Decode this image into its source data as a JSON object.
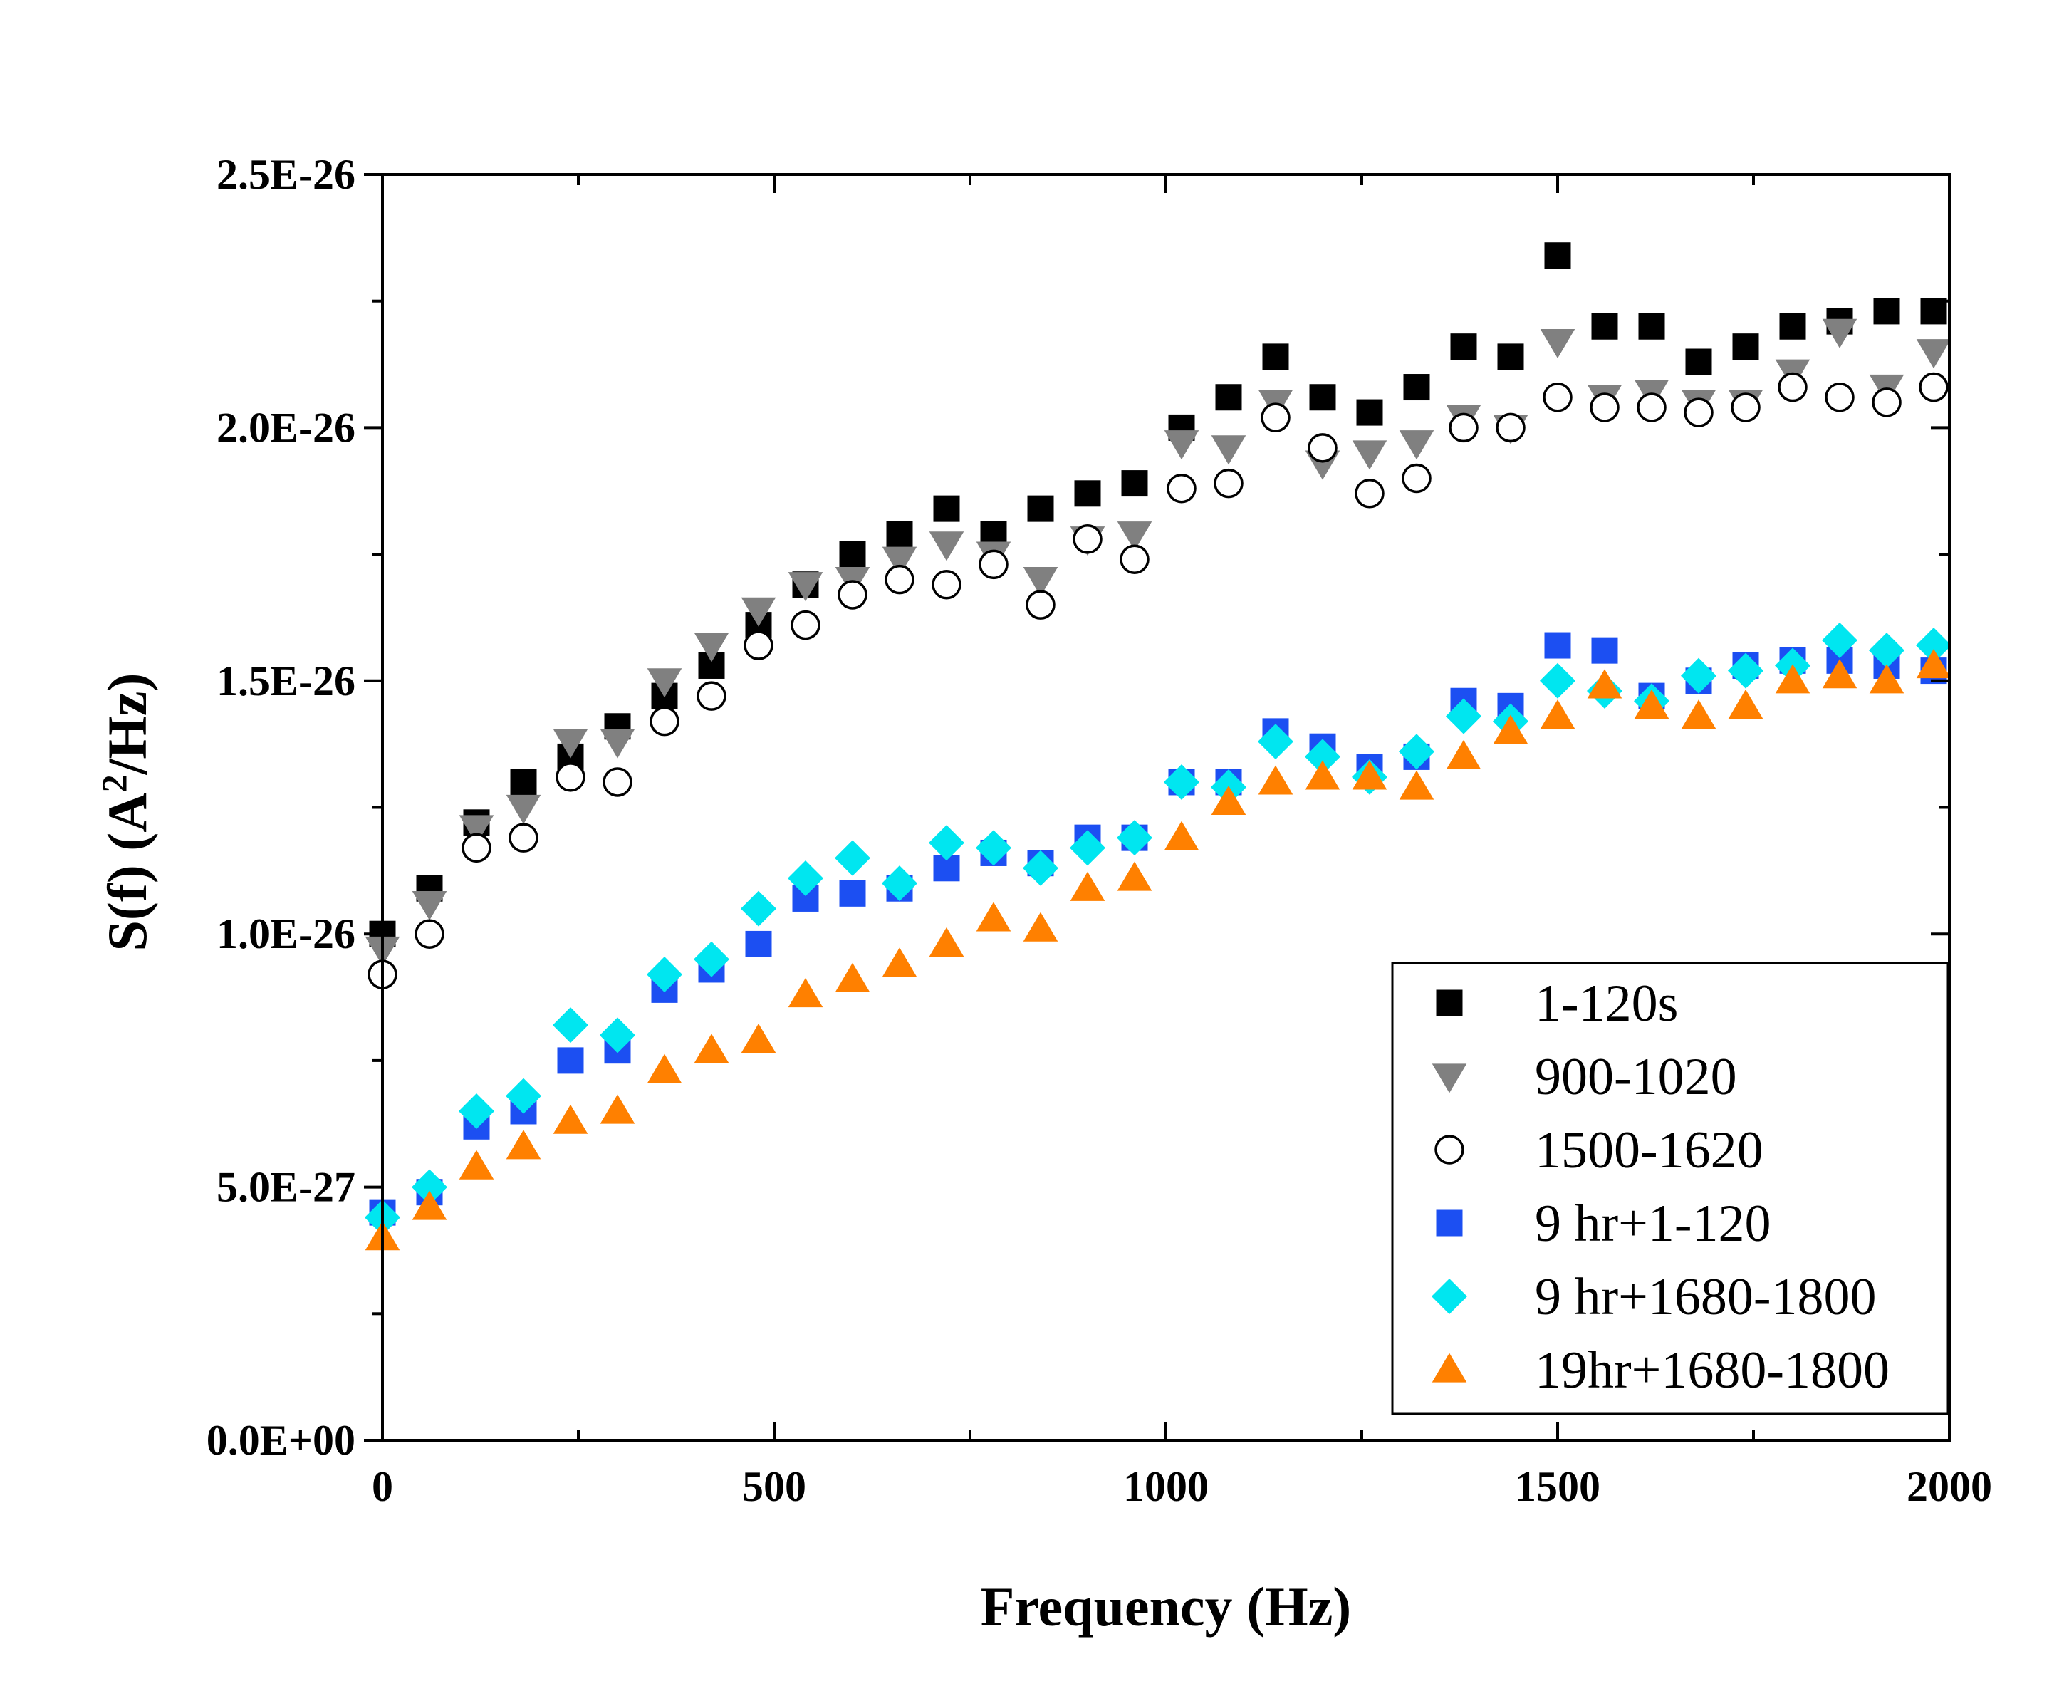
{
  "chart_data": {
    "type": "scatter",
    "xlabel": "Frequency (Hz)",
    "ylabel_main": "S(f) (A",
    "ylabel_sup": "2",
    "ylabel_rest": "/Hz)",
    "xlim": [
      0,
      2000
    ],
    "ylim": [
      0,
      2.5e-26
    ],
    "x_ticks": [
      0,
      500,
      1000,
      1500,
      2000
    ],
    "x_tick_labels": [
      "0",
      "500",
      "1000",
      "1500",
      "2000"
    ],
    "y_ticks": [
      0,
      5e-27,
      1e-26,
      1.5e-26,
      2e-26,
      2.5e-26
    ],
    "y_tick_labels": [
      "0.0E+00",
      "5.0E-27",
      "1.0E-26",
      "1.5E-26",
      "2.0E-26",
      "2.5E-26"
    ],
    "grid": false,
    "legend_position": "bottom-right",
    "x": [
      0,
      60,
      120,
      180,
      240,
      300,
      360,
      420,
      480,
      540,
      600,
      660,
      720,
      780,
      840,
      900,
      960,
      1020,
      1080,
      1140,
      1200,
      1260,
      1320,
      1380,
      1440,
      1500,
      1560,
      1620,
      1680,
      1740,
      1800,
      1860,
      1920,
      1980
    ],
    "series": [
      {
        "name": "1-120s",
        "marker": "square",
        "color": "#000000",
        "filled": true,
        "values": [
          1e-26,
          1.09e-26,
          1.22e-26,
          1.3e-26,
          1.35e-26,
          1.41e-26,
          1.47e-26,
          1.53e-26,
          1.61e-26,
          1.69e-26,
          1.75e-26,
          1.79e-26,
          1.84e-26,
          1.79e-26,
          1.84e-26,
          1.87e-26,
          1.89e-26,
          2e-26,
          2.06e-26,
          2.14e-26,
          2.06e-26,
          2.03e-26,
          2.08e-26,
          2.16e-26,
          2.14e-26,
          2.34e-26,
          2.2e-26,
          2.2e-26,
          2.13e-26,
          2.16e-26,
          2.2e-26,
          2.21e-26,
          2.23e-26,
          2.23e-26
        ]
      },
      {
        "name": "900-1020",
        "marker": "triangle-down",
        "color": "#808080",
        "filled": true,
        "values": [
          9.7e-27,
          1.06e-26,
          1.21e-26,
          1.25e-26,
          1.38e-26,
          1.38e-26,
          1.5e-26,
          1.57e-26,
          1.64e-26,
          1.69e-26,
          1.7e-26,
          1.74e-26,
          1.77e-26,
          1.75e-26,
          1.7e-26,
          1.78e-26,
          1.79e-26,
          1.97e-26,
          1.96e-26,
          2.05e-26,
          1.93e-26,
          1.95e-26,
          1.97e-26,
          2.02e-26,
          2e-26,
          2.17e-26,
          2.06e-26,
          2.07e-26,
          2.05e-26,
          2.05e-26,
          2.11e-26,
          2.19e-26,
          2.08e-26,
          2.15e-26
        ]
      },
      {
        "name": "1500-1620",
        "marker": "circle",
        "color": "#000000",
        "filled": false,
        "values": [
          9.2e-27,
          1e-26,
          1.17e-26,
          1.19e-26,
          1.31e-26,
          1.3e-26,
          1.42e-26,
          1.47e-26,
          1.57e-26,
          1.61e-26,
          1.67e-26,
          1.7e-26,
          1.69e-26,
          1.73e-26,
          1.65e-26,
          1.78e-26,
          1.74e-26,
          1.88e-26,
          1.89e-26,
          2.02e-26,
          1.96e-26,
          1.87e-26,
          1.9e-26,
          2e-26,
          2e-26,
          2.06e-26,
          2.04e-26,
          2.04e-26,
          2.03e-26,
          2.04e-26,
          2.08e-26,
          2.06e-26,
          2.05e-26,
          2.08e-26
        ]
      },
      {
        "name": "9 hr+1-120",
        "marker": "square",
        "color": "#1c4ff2",
        "filled": true,
        "values": [
          4.5e-27,
          4.9e-27,
          6.2e-27,
          6.5e-27,
          7.5e-27,
          7.7e-27,
          8.9e-27,
          9.3e-27,
          9.8e-27,
          1.07e-26,
          1.08e-26,
          1.09e-26,
          1.13e-26,
          1.16e-26,
          1.14e-26,
          1.19e-26,
          1.19e-26,
          1.3e-26,
          1.3e-26,
          1.4e-26,
          1.37e-26,
          1.33e-26,
          1.35e-26,
          1.46e-26,
          1.45e-26,
          1.57e-26,
          1.56e-26,
          1.47e-26,
          1.5e-26,
          1.53e-26,
          1.54e-26,
          1.54e-26,
          1.53e-26,
          1.52e-26
        ]
      },
      {
        "name": "9 hr+1680-1800",
        "marker": "diamond",
        "color": "#00e6f0",
        "filled": true,
        "values": [
          4.4e-27,
          5e-27,
          6.5e-27,
          6.8e-27,
          8.2e-27,
          8e-27,
          9.2e-27,
          9.5e-27,
          1.05e-26,
          1.11e-26,
          1.15e-26,
          1.1e-26,
          1.18e-26,
          1.17e-26,
          1.13e-26,
          1.17e-26,
          1.19e-26,
          1.3e-26,
          1.29e-26,
          1.38e-26,
          1.35e-26,
          1.31e-26,
          1.36e-26,
          1.43e-26,
          1.42e-26,
          1.5e-26,
          1.48e-26,
          1.46e-26,
          1.51e-26,
          1.52e-26,
          1.53e-26,
          1.58e-26,
          1.56e-26,
          1.57e-26
        ]
      },
      {
        "name": "19hr+1680-1800",
        "marker": "triangle-up",
        "color": "#ff8000",
        "filled": true,
        "values": [
          4e-27,
          4.6e-27,
          5.4e-27,
          5.8e-27,
          6.3e-27,
          6.5e-27,
          7.3e-27,
          7.7e-27,
          7.9e-27,
          8.8e-27,
          9.1e-27,
          9.4e-27,
          9.8e-27,
          1.03e-26,
          1.01e-26,
          1.09e-26,
          1.11e-26,
          1.19e-26,
          1.26e-26,
          1.3e-26,
          1.31e-26,
          1.31e-26,
          1.29e-26,
          1.35e-26,
          1.4e-26,
          1.43e-26,
          1.49e-26,
          1.45e-26,
          1.43e-26,
          1.45e-26,
          1.5e-26,
          1.51e-26,
          1.5e-26,
          1.53e-26
        ]
      }
    ]
  }
}
